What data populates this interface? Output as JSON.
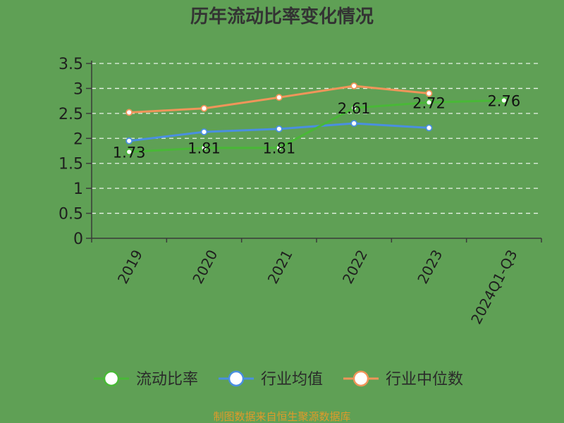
{
  "colors": {
    "background": "#5fa055",
    "grid": "#e8f2e6",
    "axis": "#3a3a3a",
    "title": "#333333",
    "tick_label": "#1f1f1f",
    "legend_text": "#2a2a2a",
    "watermark": "#e09a2a"
  },
  "chart_data": {
    "type": "line",
    "title": "历年流动比率变化情况",
    "xlabel": "",
    "ylabel": "",
    "ylim": [
      0,
      3.5
    ],
    "yticks": [
      "0",
      "0.5",
      "1",
      "1.5",
      "2",
      "2.5",
      "3",
      "3.5"
    ],
    "grid": true,
    "categories": [
      "2019",
      "2020",
      "2021",
      "2022",
      "2023",
      "2024Q1-Q3"
    ],
    "legend_position": "bottom",
    "series": [
      {
        "name": "流动比率",
        "color": "#49b837",
        "values": [
          1.73,
          1.81,
          1.81,
          2.61,
          2.72,
          2.76
        ],
        "labels": [
          "1.73",
          "1.81",
          "1.81",
          "2.61",
          "2.72",
          "2.76"
        ]
      },
      {
        "name": "行业均值",
        "color": "#4a8fe0",
        "values": [
          1.95,
          2.13,
          2.19,
          2.3,
          2.21,
          null
        ],
        "labels": []
      },
      {
        "name": "行业中位数",
        "color": "#f0955a",
        "values": [
          2.52,
          2.6,
          2.82,
          3.05,
          2.9,
          null
        ],
        "labels": []
      }
    ]
  },
  "watermark": "制图数据来自恒生聚源数据库"
}
